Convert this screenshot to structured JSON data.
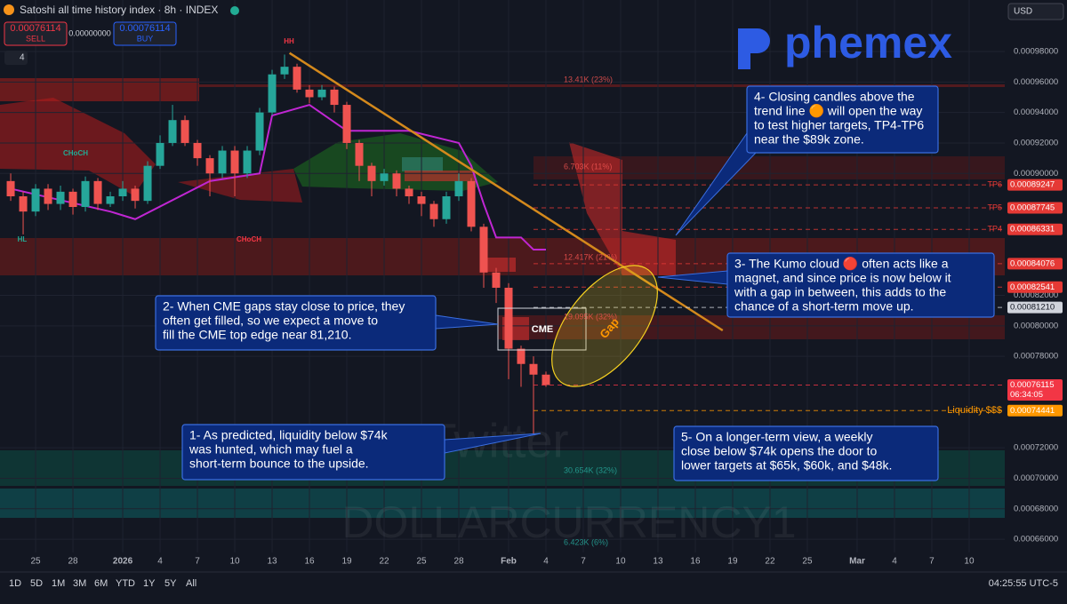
{
  "header": {
    "title": "Satoshi all time history index · 8h · INDEX",
    "sell_price": "0.00076114",
    "sell_label": "SELL",
    "spread": "0.00000000",
    "buy_price": "0.00076114",
    "buy_label": "BUY",
    "indicator_count": "4",
    "currency": "USD"
  },
  "logo": "phemex",
  "watermarks": [
    "Twitter",
    "DOLLARCURRENCY1"
  ],
  "chart_data": {
    "type": "candlestick",
    "x": [
      -2,
      -1,
      0,
      1,
      2,
      3,
      4,
      5,
      6,
      7,
      8,
      9,
      10,
      11,
      12,
      13,
      14,
      15,
      16,
      17,
      18,
      19,
      20,
      21,
      22,
      23,
      24,
      25,
      26,
      27,
      28,
      29,
      30,
      31,
      32,
      33,
      34,
      35,
      36,
      37,
      38,
      39,
      40,
      41
    ],
    "open": [
      0.000895,
      0.000885,
      0.000875,
      0.00089,
      0.00088,
      0.000888,
      0.000878,
      0.000895,
      0.00088,
      0.000885,
      0.00089,
      0.000882,
      0.000905,
      0.00092,
      0.000935,
      0.00092,
      0.00091,
      0.0009,
      0.000915,
      0.0009,
      0.000915,
      0.00094,
      0.000965,
      0.00097,
      0.000955,
      0.00095,
      0.000955,
      0.000945,
      0.00092,
      0.000905,
      0.000895,
      0.0009,
      0.00089,
      0.000885,
      0.00088,
      0.00087,
      0.000885,
      0.000895,
      0.000865,
      0.000835,
      0.000825,
      0.000785,
      0.000775,
      0.000768
    ],
    "high": [
      0.0009,
      0.000888,
      0.000893,
      0.000893,
      0.000892,
      0.00089,
      0.000898,
      0.000897,
      0.000888,
      0.000895,
      0.000892,
      0.000908,
      0.000925,
      0.000945,
      0.000938,
      0.000922,
      0.000912,
      0.000918,
      0.000918,
      0.000918,
      0.000943,
      0.000968,
      0.000978,
      0.000972,
      0.000958,
      0.000958,
      0.000957,
      0.000947,
      0.000922,
      0.000907,
      0.000903,
      0.000902,
      0.000892,
      0.000888,
      0.000882,
      0.000888,
      0.0009,
      0.000897,
      0.000867,
      0.000838,
      0.000828,
      0.000787,
      0.00078,
      0.00077
    ],
    "low": [
      0.000882,
      0.00086,
      0.000872,
      0.000876,
      0.000876,
      0.000873,
      0.000875,
      0.000876,
      0.000878,
      0.000882,
      0.000877,
      0.00088,
      0.000903,
      0.000918,
      0.000918,
      0.000905,
      0.000885,
      0.000897,
      0.000885,
      0.000897,
      0.000912,
      0.000938,
      0.000962,
      0.000953,
      0.000946,
      0.000948,
      0.00094,
      0.000916,
      0.000895,
      0.000885,
      0.000892,
      0.000885,
      0.00088,
      0.000872,
      0.000865,
      0.000867,
      0.000882,
      0.000862,
      0.000825,
      0.000815,
      0.000765,
      0.00076,
      0.000729,
      0.00076
    ],
    "close": [
      0.000885,
      0.000875,
      0.00089,
      0.00088,
      0.000888,
      0.000878,
      0.000895,
      0.00088,
      0.000885,
      0.00089,
      0.000882,
      0.000905,
      0.00092,
      0.000935,
      0.00092,
      0.00091,
      0.0009,
      0.000915,
      0.0009,
      0.000915,
      0.00094,
      0.000965,
      0.00097,
      0.000955,
      0.00095,
      0.000955,
      0.000945,
      0.00092,
      0.000905,
      0.000895,
      0.0009,
      0.00089,
      0.000885,
      0.00088,
      0.00087,
      0.000885,
      0.000895,
      0.000865,
      0.000835,
      0.000825,
      0.000785,
      0.000775,
      0.000768,
      0.0007612
    ],
    "up_color": "#26a69a",
    "down_color": "#ef5350",
    "overlay": {
      "color": "#c026d3",
      "x": [
        -2,
        6,
        8,
        14,
        18,
        19,
        22,
        25,
        30,
        34,
        35,
        36,
        37,
        39,
        40,
        41
      ],
      "values": [
        0.00089,
        0.000875,
        0.00087,
        0.000895,
        0.0009,
        0.000938,
        0.000945,
        0.000928,
        0.000928,
        0.00092,
        0.000905,
        0.00088,
        0.000858,
        0.000858,
        0.00085,
        0.00085
      ]
    },
    "trend_line": {
      "color": "#d4891c",
      "x": [
        20.4,
        55.2
      ],
      "values": [
        0.000979,
        0.000797
      ]
    },
    "xlim": [
      -2.86,
      77.86
    ],
    "xticks": [
      {
        "value": 0,
        "label": "25"
      },
      {
        "value": 3,
        "label": "28"
      },
      {
        "value": 7,
        "label": "2026"
      },
      {
        "value": 10,
        "label": "4"
      },
      {
        "value": 13,
        "label": "7"
      },
      {
        "value": 16,
        "label": "10"
      },
      {
        "value": 19,
        "label": "13"
      },
      {
        "value": 22,
        "label": "16"
      },
      {
        "value": 25,
        "label": "19"
      },
      {
        "value": 28,
        "label": "22"
      },
      {
        "value": 31,
        "label": "25"
      },
      {
        "value": 34,
        "label": "28"
      },
      {
        "value": 38,
        "label": "Feb"
      },
      {
        "value": 41,
        "label": "4"
      },
      {
        "value": 44,
        "label": "7"
      },
      {
        "value": 47,
        "label": "10"
      },
      {
        "value": 50,
        "label": "13"
      },
      {
        "value": 53,
        "label": "16"
      },
      {
        "value": 56,
        "label": "19"
      },
      {
        "value": 59,
        "label": "22"
      },
      {
        "value": 62,
        "label": "25"
      },
      {
        "value": 66,
        "label": "Mar"
      },
      {
        "value": 69,
        "label": "4"
      },
      {
        "value": 72,
        "label": "7"
      },
      {
        "value": 75,
        "label": "10"
      }
    ],
    "ylim": [
      0.0006513,
      0.0010138
    ],
    "yticks": [
      {
        "value": 0.00098,
        "label": "0.00098000"
      },
      {
        "value": 0.00096,
        "label": "0.00096000"
      },
      {
        "value": 0.00094,
        "label": "0.00094000"
      },
      {
        "value": 0.00092,
        "label": "0.00092000"
      },
      {
        "value": 0.0009,
        "label": "0.00090000"
      },
      {
        "value": 0.00082,
        "label": "0.00082000"
      },
      {
        "value": 0.0008,
        "label": "0.00080000"
      },
      {
        "value": 0.00078,
        "label": "0.00078000"
      },
      {
        "value": 0.00072,
        "label": "0.00072000"
      },
      {
        "value": 0.0007,
        "label": "0.00070000"
      },
      {
        "value": 0.00068,
        "label": "0.00068000"
      },
      {
        "value": 0.00066,
        "label": "0.00066000"
      }
    ],
    "grid": true,
    "levels": [
      {
        "name": "TP6",
        "value": 0.00089247,
        "label": "0.00089247",
        "color": "#e53935"
      },
      {
        "name": "TP5",
        "value": 0.00087745,
        "label": "0.00087745",
        "color": "#e53935"
      },
      {
        "name": "TP4",
        "value": 0.00086331,
        "label": "0.00086331",
        "color": "#e53935"
      },
      {
        "value": 0.00084076,
        "label": "0.00084076",
        "color": "#e53935"
      },
      {
        "value": 0.00082541,
        "label": "0.00082541",
        "color": "#e53935"
      },
      {
        "value": 0.0008121,
        "label": "0.00081210",
        "color": "#d1d4dc"
      },
      {
        "value": 0.00076115,
        "label": "0.00076115",
        "time": "06:34:05",
        "color": "#f23645"
      },
      {
        "name": "Liquidity $$$",
        "value": 0.00074441,
        "label": "0.00074441",
        "color": "#ff9800"
      }
    ],
    "markers": [
      "HH",
      "HL",
      "CHoCH",
      "CHoCH",
      "CME",
      "Gap"
    ],
    "fib_labels": [
      "13.41K (23%)",
      "6.703K (11%)",
      "12.417K (21%)",
      "19.095K (32%)",
      "30.654K (32%)",
      "6.423K (6%)"
    ]
  },
  "callouts": [
    {
      "lines": [
        "1- As predicted, liquidity below $74k",
        "was hunted, which may fuel a",
        "short-term bounce to the upside."
      ]
    },
    {
      "lines": [
        "2- When CME gaps stay close to price, they",
        "often get filled, so we expect a move to",
        "fill the CME top edge near 81,210."
      ]
    },
    {
      "lines": [
        "3- The Kumo cloud 🔴 often acts like a",
        "magnet, and since price is now below it",
        "with a gap in between, this adds to the",
        "chance of a short-term move up."
      ]
    },
    {
      "lines": [
        "4- Closing candles above the",
        "trend line 🟠 will open the way",
        "to test higher targets, TP4-TP6",
        "near the $89k zone."
      ]
    },
    {
      "lines": [
        "5- On a longer-term view, a weekly",
        "close below $74k opens the door to",
        "lower targets at $65k, $60k, and $48k."
      ]
    }
  ],
  "toolbar": {
    "ranges": [
      "1D",
      "5D",
      "1M",
      "3M",
      "6M",
      "YTD",
      "1Y",
      "5Y",
      "All"
    ],
    "clock": "04:25:55 UTC-5"
  }
}
